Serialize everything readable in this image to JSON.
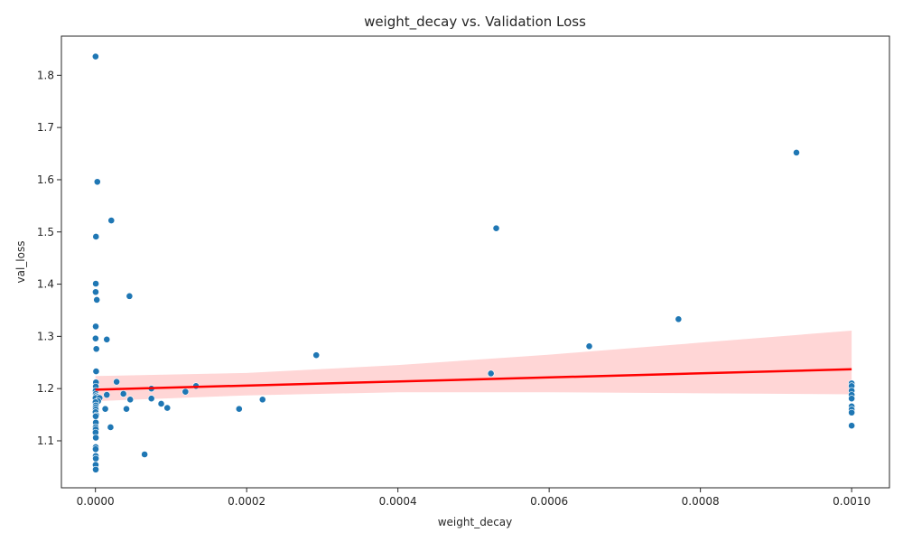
{
  "chart_data": {
    "type": "scatter",
    "title": "weight_decay vs. Validation Loss",
    "xlabel": "weight_decay",
    "ylabel": "val_loss",
    "xlim": [
      -4.5e-05,
      0.00105
    ],
    "ylim": [
      1.01,
      1.875
    ],
    "xticks": [
      0.0,
      0.0002,
      0.0004,
      0.0006,
      0.0008,
      0.001
    ],
    "xtick_labels": [
      "0.0000",
      "0.0002",
      "0.0004",
      "0.0006",
      "0.0008",
      "0.0010"
    ],
    "yticks": [
      1.1,
      1.2,
      1.3,
      1.4,
      1.5,
      1.6,
      1.7,
      1.8
    ],
    "ytick_labels": [
      "1.1",
      "1.2",
      "1.3",
      "1.4",
      "1.5",
      "1.6",
      "1.7",
      "1.8"
    ],
    "grid": false,
    "point_color": "#1f77b4",
    "regression": {
      "color": "#ff0000",
      "band_color": "#ffcccc",
      "x_range": [
        0.0,
        0.001
      ],
      "y_start": 1.198,
      "y_end": 1.237,
      "ci_upper": [
        [
          0.0,
          1.224
        ],
        [
          0.0002,
          1.23
        ],
        [
          0.0004,
          1.245
        ],
        [
          0.0006,
          1.265
        ],
        [
          0.0008,
          1.288
        ],
        [
          0.001,
          1.311
        ]
      ],
      "ci_lower": [
        [
          0.0,
          1.176
        ],
        [
          0.0002,
          1.187
        ],
        [
          0.0004,
          1.193
        ],
        [
          0.0006,
          1.193
        ],
        [
          0.0008,
          1.191
        ],
        [
          0.001,
          1.189
        ]
      ]
    },
    "points": [
      [
        2e-07,
        1.836
      ],
      [
        2.5e-06,
        1.596
      ],
      [
        2.1e-05,
        1.522
      ],
      [
        7e-07,
        1.491
      ],
      [
        5e-07,
        1.401
      ],
      [
        3e-07,
        1.385
      ],
      [
        1.8e-06,
        1.37
      ],
      [
        4.5e-05,
        1.377
      ],
      [
        4e-07,
        1.319
      ],
      [
        2e-07,
        1.296
      ],
      [
        1.5e-05,
        1.294
      ],
      [
        1.2e-06,
        1.276
      ],
      [
        9e-07,
        1.233
      ],
      [
        7e-07,
        1.212
      ],
      [
        5e-07,
        1.204
      ],
      [
        2.8e-05,
        1.213
      ],
      [
        3e-07,
        1.196
      ],
      [
        4e-07,
        1.19
      ],
      [
        1.5e-05,
        1.188
      ],
      [
        9e-07,
        1.186
      ],
      [
        2.5e-06,
        1.184
      ],
      [
        2e-07,
        1.182
      ],
      [
        5.5e-06,
        1.182
      ],
      [
        3.5e-06,
        1.176
      ],
      [
        3.7e-05,
        1.19
      ],
      [
        4.6e-05,
        1.179
      ],
      [
        7.4e-05,
        1.2
      ],
      [
        7.4e-05,
        1.181
      ],
      [
        2e-07,
        1.174
      ],
      [
        8.7e-05,
        1.171
      ],
      [
        5e-07,
        1.168
      ],
      [
        1.3e-05,
        1.161
      ],
      [
        4.1e-05,
        1.161
      ],
      [
        3e-07,
        1.164
      ],
      [
        9.5e-05,
        1.163
      ],
      [
        4e-07,
        1.16
      ],
      [
        2e-07,
        1.155
      ],
      [
        1.2e-06,
        1.149
      ],
      [
        3e-07,
        1.147
      ],
      [
        5e-07,
        1.135
      ],
      [
        3e-07,
        1.126
      ],
      [
        2e-05,
        1.126
      ],
      [
        4e-07,
        1.122
      ],
      [
        2e-07,
        1.116
      ],
      [
        5e-07,
        1.106
      ],
      [
        4e-07,
        1.088
      ],
      [
        3e-07,
        1.084
      ],
      [
        4e-07,
        1.071
      ],
      [
        5e-07,
        1.066
      ],
      [
        3e-07,
        1.054
      ],
      [
        4e-07,
        1.045
      ],
      [
        6.5e-05,
        1.074
      ],
      [
        0.000119,
        1.194
      ],
      [
        0.000133,
        1.205
      ],
      [
        0.00019,
        1.161
      ],
      [
        0.000221,
        1.179
      ],
      [
        0.000292,
        1.264
      ],
      [
        0.00053,
        1.507
      ],
      [
        0.000523,
        1.229
      ],
      [
        0.000653,
        1.281
      ],
      [
        0.000771,
        1.333
      ],
      [
        0.000927,
        1.652
      ],
      [
        0.001,
        1.21
      ],
      [
        0.001,
        1.205
      ],
      [
        0.001,
        1.196
      ],
      [
        0.001,
        1.188
      ],
      [
        0.001,
        1.181
      ],
      [
        0.001,
        1.166
      ],
      [
        0.001,
        1.16
      ],
      [
        0.001,
        1.154
      ],
      [
        0.001,
        1.129
      ]
    ]
  }
}
